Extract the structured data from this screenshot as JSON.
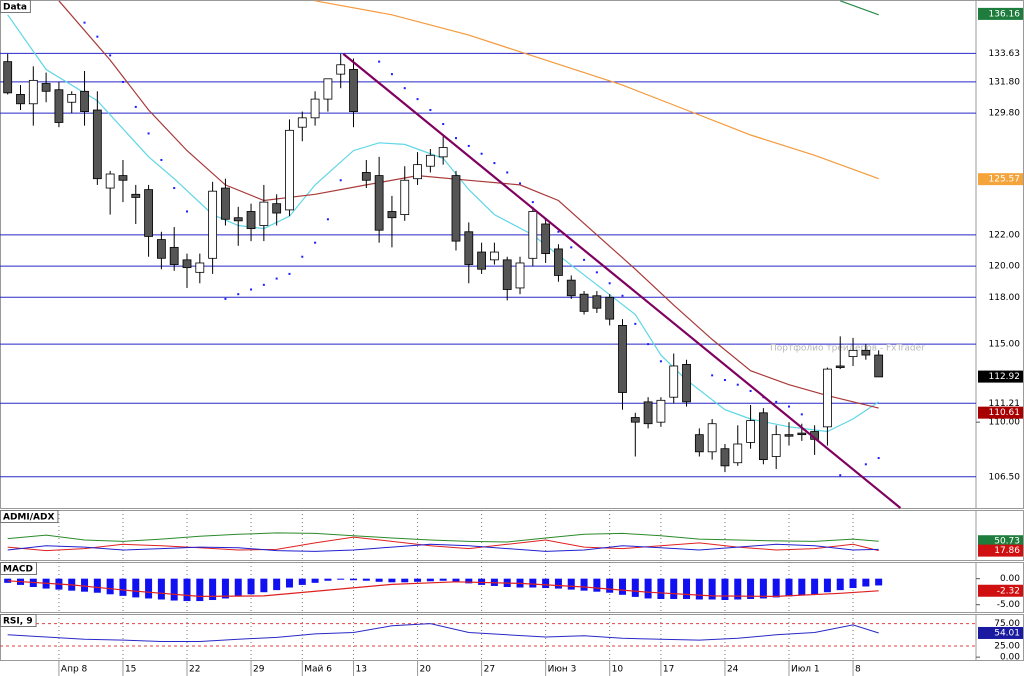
{
  "chart_data": [
    {
      "type": "candlestick",
      "title": "Data",
      "xlim": [
        -0.6,
        75.6
      ],
      "ylim": [
        104.5,
        137.05
      ],
      "up_color": "#ffffff",
      "down_color": "#555555",
      "open": [
        133.1,
        131.0,
        130.4,
        131.7,
        131.3,
        130.5,
        131.2,
        130.0,
        125.0,
        125.8,
        124.6,
        124.9,
        121.7,
        121.2,
        120.4,
        119.6,
        120.5,
        125.0,
        123.1,
        123.5,
        122.6,
        124.0,
        123.6,
        128.9,
        129.5,
        130.7,
        132.3,
        132.6,
        126.0,
        125.8,
        123.5,
        123.3,
        125.6,
        126.4,
        127.0,
        125.8,
        122.2,
        120.9,
        120.4,
        120.4,
        118.6,
        120.5,
        122.7,
        121.1,
        119.1,
        118.2,
        118.1,
        118.0,
        116.2,
        110.3,
        111.3,
        110.0,
        111.6,
        113.7,
        109.2,
        108.1,
        108.3,
        107.4,
        108.7,
        110.6,
        107.8,
        109.2,
        109.3,
        109.4,
        109.7,
        113.6,
        114.2,
        114.6,
        114.3
      ],
      "high": [
        133.6,
        131.6,
        132.8,
        132.4,
        131.8,
        131.2,
        132.5,
        131.2,
        126.1,
        126.8,
        125.2,
        125.2,
        122.2,
        122.5,
        120.8,
        120.8,
        125.4,
        125.6,
        123.8,
        124.0,
        125.2,
        124.6,
        129.4,
        129.9,
        131.2,
        132.0,
        133.6,
        133.3,
        126.8,
        127.0,
        124.5,
        126.4,
        127.3,
        127.5,
        128.3,
        126.1,
        122.8,
        121.5,
        121.5,
        120.6,
        120.6,
        123.8,
        123.0,
        121.4,
        119.4,
        118.4,
        118.4,
        118.2,
        116.6,
        110.6,
        111.6,
        111.6,
        114.4,
        114.0,
        109.6,
        110.2,
        108.6,
        109.8,
        111.1,
        110.9,
        109.8,
        110.0,
        109.9,
        109.8,
        113.5,
        115.5,
        115.4,
        115.0,
        114.6
      ],
      "low": [
        131.0,
        130.0,
        129.0,
        130.5,
        128.9,
        129.8,
        129.0,
        125.2,
        123.3,
        124.1,
        122.7,
        120.6,
        119.8,
        119.7,
        118.6,
        118.9,
        119.5,
        122.6,
        121.3,
        121.6,
        121.6,
        122.6,
        123.2,
        128.0,
        129.0,
        129.9,
        131.4,
        128.9,
        125.0,
        121.5,
        121.2,
        122.9,
        125.2,
        126.0,
        126.5,
        121.0,
        118.9,
        119.5,
        120.1,
        117.8,
        118.2,
        120.0,
        120.2,
        119.0,
        117.9,
        116.9,
        117.0,
        116.2,
        110.8,
        107.8,
        109.6,
        109.7,
        111.2,
        111.0,
        107.8,
        107.6,
        106.8,
        107.2,
        108.3,
        107.3,
        107.0,
        108.5,
        108.8,
        107.9,
        108.5,
        113.4,
        113.6,
        114.0,
        112.9
      ],
      "close": [
        131.1,
        130.4,
        131.9,
        131.2,
        129.2,
        131.0,
        129.9,
        125.6,
        125.9,
        125.5,
        124.4,
        121.9,
        120.5,
        120.1,
        119.9,
        120.2,
        124.8,
        123.0,
        122.9,
        122.4,
        124.1,
        123.4,
        128.7,
        129.5,
        130.7,
        132.0,
        132.9,
        129.9,
        125.5,
        122.3,
        123.1,
        125.5,
        126.5,
        127.1,
        127.6,
        121.6,
        120.1,
        119.8,
        120.9,
        118.5,
        120.2,
        123.5,
        120.8,
        119.4,
        118.1,
        117.1,
        117.3,
        116.6,
        111.9,
        110.0,
        109.9,
        111.4,
        113.6,
        111.3,
        108.1,
        109.9,
        107.2,
        108.6,
        110.1,
        107.6,
        109.2,
        109.1,
        109.2,
        108.9,
        113.4,
        113.5,
        114.6,
        114.3,
        112.9
      ],
      "levels": [
        {
          "value": 133.63,
          "label": "133.63"
        },
        {
          "value": 131.8,
          "label": "131.80"
        },
        {
          "value": 129.8,
          "label": "129.80"
        },
        {
          "value": 122,
          "label": "122.00"
        },
        {
          "value": 120,
          "label": "120.00"
        },
        {
          "value": 118,
          "label": "118.00"
        },
        {
          "value": 115,
          "label": "115.00"
        },
        {
          "value": 111.21,
          "label": "111.21"
        },
        {
          "value": 106.5,
          "label": "106.50"
        }
      ],
      "level_color": "#2828c8",
      "yticks": [
        {
          "value": 110,
          "label": "110.00"
        }
      ],
      "price_markers": [
        {
          "value": 136.16,
          "label": "136.16",
          "color": "#1e7d3c",
          "text_color": "#ffffff"
        },
        {
          "value": 125.57,
          "label": "125.57",
          "color": "#f4a43a",
          "text_color": "#ffffff"
        },
        {
          "value": 112.92,
          "label": "112.92",
          "color": "#000000",
          "text_color": "#ffffff"
        },
        {
          "value": 110.61,
          "label": "110.61",
          "color": "#a80000",
          "text_color": "#ffffff"
        }
      ],
      "overlays": [
        {
          "color": "#5fd6e6",
          "x": [
            0,
            3,
            7,
            11,
            13,
            16,
            18,
            20,
            22,
            24,
            27,
            29,
            31,
            34,
            36,
            38,
            41,
            43,
            46,
            49,
            51,
            53,
            56,
            58,
            61,
            64,
            66,
            68
          ],
          "values": [
            136.1,
            132.6,
            130.6,
            127.0,
            125.6,
            123.3,
            122.6,
            122.4,
            123.2,
            125.2,
            127.4,
            127.9,
            127.8,
            126.9,
            124.9,
            123.3,
            122.0,
            120.7,
            118.8,
            116.9,
            114.3,
            112.7,
            110.8,
            110.2,
            109.7,
            109.4,
            110.2,
            111.3
          ]
        },
        {
          "color": "#a83a3a",
          "x": [
            4,
            8,
            11,
            14,
            17,
            20,
            24,
            28,
            32,
            36,
            40,
            43,
            46,
            49,
            52,
            55,
            58,
            61,
            64,
            68
          ],
          "values": [
            137.0,
            133.2,
            130.0,
            127.4,
            125.2,
            124.2,
            124.6,
            125.2,
            125.8,
            125.5,
            125.2,
            124.2,
            122.0,
            119.8,
            117.5,
            115.3,
            113.3,
            112.4,
            111.7,
            110.9
          ]
        },
        {
          "color": "#f59a3c",
          "x": [
            24,
            30,
            36,
            42,
            48,
            53,
            58,
            63,
            68
          ],
          "values": [
            137.0,
            136.1,
            134.8,
            133.2,
            131.6,
            130.0,
            128.4,
            127.1,
            125.6
          ]
        },
        {
          "color": "#2a8a4a",
          "x": [
            65,
            68
          ],
          "values": [
            137.0,
            136.1
          ]
        }
      ],
      "sar": {
        "color": "#1c1cff",
        "x": [
          6,
          7,
          8,
          9,
          10,
          11,
          12,
          13,
          14,
          17,
          18,
          19,
          20,
          21,
          22,
          23,
          24,
          25,
          26,
          29,
          30,
          31,
          32,
          33,
          34,
          35,
          36,
          37,
          38,
          39,
          40,
          41,
          42,
          43,
          44,
          45,
          46,
          47,
          48,
          49,
          50,
          51,
          52,
          53,
          55,
          56,
          57,
          58,
          59,
          60,
          61,
          62,
          65,
          67,
          68
        ],
        "values": [
          135.6,
          134.7,
          133.5,
          131.8,
          130.2,
          128.5,
          126.8,
          125.0,
          123.5,
          117.9,
          118.2,
          118.5,
          118.8,
          119.2,
          119.5,
          120.6,
          121.5,
          123.0,
          125.5,
          133.1,
          132.3,
          131.4,
          130.7,
          130.0,
          129.1,
          128.2,
          127.7,
          127.2,
          126.6,
          126.0,
          125.3,
          124.1,
          123.0,
          122.2,
          121.2,
          120.4,
          119.6,
          118.9,
          118.1,
          116.3,
          115.0,
          113.9,
          113.0,
          112.3,
          113.0,
          112.7,
          112.4,
          112.0,
          111.6,
          111.3,
          111.0,
          110.5,
          106.6,
          107.3,
          107.7
        ]
      },
      "trend_line": {
        "color": "#800060",
        "x": [
          26.2,
          69.7
        ],
        "values": [
          133.6,
          104.5
        ]
      },
      "watermark": "Портфолио трейдеров - FxTrader"
    },
    {
      "type": "line",
      "title": "ADMI/ADX",
      "xlim": [
        -0.6,
        75.6
      ],
      "ylim": [
        -15,
        160
      ],
      "x": [
        0,
        3,
        6,
        9,
        12,
        15,
        18,
        21,
        24,
        27,
        30,
        33,
        36,
        39,
        42,
        45,
        48,
        51,
        54,
        57,
        60,
        63,
        66,
        68
      ],
      "series": [
        {
          "color": "#2a8a2a",
          "values": [
            60,
            72,
            55,
            50,
            58,
            68,
            75,
            80,
            78,
            70,
            62,
            55,
            50,
            48,
            62,
            75,
            78,
            70,
            58,
            55,
            52,
            50,
            58,
            50.73
          ]
        },
        {
          "color": "#e02020",
          "values": [
            30,
            18,
            25,
            40,
            35,
            28,
            20,
            22,
            45,
            65,
            50,
            35,
            25,
            40,
            55,
            30,
            25,
            35,
            45,
            30,
            20,
            25,
            40,
            17.86
          ]
        },
        {
          "color": "#2020d0",
          "values": [
            20,
            35,
            30,
            20,
            25,
            30,
            28,
            18,
            15,
            20,
            30,
            40,
            35,
            25,
            15,
            20,
            35,
            28,
            20,
            30,
            40,
            35,
            20,
            22
          ]
        }
      ],
      "price_markers": [
        {
          "value": 50.73,
          "label": "50.73",
          "color": "#1e7d3c",
          "text_color": "#ffffff"
        },
        {
          "value": 17.86,
          "label": "17.86",
          "color": "#d01010",
          "text_color": "#ffffff"
        }
      ]
    },
    {
      "type": "macd",
      "title": "MACD",
      "xlim": [
        -0.6,
        75.6
      ],
      "ylim": [
        -6.4,
        3.2
      ],
      "bar_color": "#1010f0",
      "values": [
        -0.8,
        -1.2,
        -1.6,
        -1.9,
        -2.1,
        -2.3,
        -2.5,
        -2.7,
        -3.0,
        -3.3,
        -3.6,
        -3.8,
        -4.0,
        -4.2,
        -4.3,
        -4.3,
        -4.1,
        -3.8,
        -3.4,
        -3.0,
        -2.6,
        -2.2,
        -1.7,
        -1.2,
        -0.8,
        -0.4,
        -0.2,
        -0.3,
        -0.4,
        -0.6,
        -0.7,
        -0.7,
        -0.6,
        -0.5,
        -0.4,
        -0.6,
        -0.9,
        -1.2,
        -1.4,
        -1.6,
        -1.7,
        -1.7,
        -1.8,
        -1.9,
        -2.1,
        -2.3,
        -2.5,
        -2.7,
        -3.1,
        -3.5,
        -3.8,
        -3.9,
        -3.9,
        -3.9,
        -4.0,
        -4.0,
        -4.1,
        -4.0,
        -3.9,
        -3.8,
        -3.6,
        -3.4,
        -3.2,
        -3.0,
        -2.6,
        -2.2,
        -1.8,
        -1.5,
        -1.3
      ],
      "signal": {
        "color": "#e02020",
        "x": [
          0,
          5,
          10,
          15,
          20,
          25,
          30,
          35,
          40,
          45,
          50,
          55,
          60,
          65,
          68
        ],
        "values": [
          -0.4,
          -1.2,
          -2.4,
          -3.4,
          -3.3,
          -2.2,
          -1.1,
          -0.6,
          -0.9,
          -1.6,
          -2.6,
          -3.3,
          -3.4,
          -2.8,
          -2.32
        ]
      },
      "yticks": [
        {
          "value": 0,
          "label": "0.00"
        },
        {
          "value": -5,
          "label": "-5.00"
        }
      ],
      "price_markers": [
        {
          "value": -2.32,
          "label": "-2.32",
          "color": "#d01010",
          "text_color": "#ffffff"
        }
      ]
    },
    {
      "type": "line",
      "title": "RSI, 9",
      "xlim": [
        -0.6,
        75.6
      ],
      "ylim": [
        -6.4,
        96.4
      ],
      "x": [
        0,
        3,
        6,
        9,
        12,
        15,
        18,
        21,
        24,
        27,
        30,
        33,
        36,
        39,
        42,
        45,
        48,
        51,
        54,
        57,
        60,
        63,
        66,
        68
      ],
      "series": [
        {
          "color": "#2828c8",
          "values": [
            50,
            45,
            40,
            38,
            35,
            35,
            40,
            44,
            52,
            55,
            70,
            75,
            55,
            50,
            45,
            48,
            42,
            40,
            38,
            42,
            50,
            55,
            72,
            54.01
          ]
        }
      ],
      "yticks": [
        {
          "value": 75,
          "label": "75.00",
          "line": "#e04040"
        },
        {
          "value": 25,
          "label": "25.00",
          "line": "#e04040"
        },
        {
          "value": 0,
          "label": "0.00"
        }
      ],
      "price_markers": [
        {
          "value": 54.01,
          "label": "54.01",
          "color": "#1a1aa0",
          "text_color": "#ffffff"
        }
      ],
      "xticks": [
        {
          "value": 4,
          "label": "Апр 8"
        },
        {
          "value": 9,
          "label": "15"
        },
        {
          "value": 14,
          "label": "22"
        },
        {
          "value": 19,
          "label": "29"
        },
        {
          "value": 23,
          "label": "Май 6"
        },
        {
          "value": 27,
          "label": "13"
        },
        {
          "value": 32,
          "label": "20"
        },
        {
          "value": 37,
          "label": "27"
        },
        {
          "value": 42,
          "label": "Июн 3"
        },
        {
          "value": 47,
          "label": "10"
        },
        {
          "value": 51,
          "label": "17"
        },
        {
          "value": 56,
          "label": "24"
        },
        {
          "value": 61,
          "label": "Июл 1"
        },
        {
          "value": 66,
          "label": "8"
        }
      ]
    }
  ]
}
